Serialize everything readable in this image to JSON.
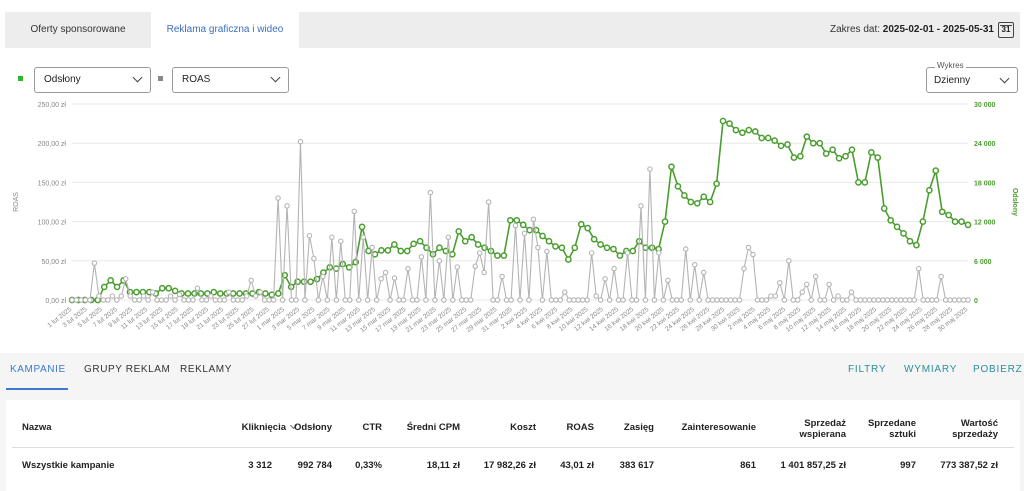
{
  "tabs": [
    {
      "label": "Oferty sponsorowane",
      "active": false
    },
    {
      "label": "Reklama graficzna i wideo",
      "active": true
    }
  ],
  "date_range": {
    "label": "Zakres dat:",
    "value": "2025-02-01 - 2025-05-31",
    "calendar_day": "31"
  },
  "metric_selectors": {
    "left": {
      "value": "Odsłony",
      "color": "#2db82d"
    },
    "right": {
      "value": "ROAS",
      "color": "#888888"
    }
  },
  "chart_type_select": {
    "legend": "Wykres",
    "value": "Dzienny"
  },
  "colors": {
    "green": "#4a9e2f",
    "gray": "#b4b4b4",
    "accent_blue": "#3b7ad0",
    "action_teal": "#2a8f9a"
  },
  "chart_data": {
    "type": "line",
    "left_axis": {
      "label": "ROAS",
      "ticks": [
        "0,00 zł",
        "50,00 zł",
        "100,00 zł",
        "150,00 zł",
        "200,00 zł",
        "250,00 zł"
      ],
      "min": 0,
      "max": 250
    },
    "right_axis": {
      "label": "Odsłony",
      "ticks": [
        "0",
        "6 000",
        "12 000",
        "18 000",
        "24 000",
        "30 000"
      ],
      "min": 0,
      "max": 30000
    },
    "x_tick_labels": [
      "1 lut 2025",
      "3 lut 2025",
      "5 lut 2025",
      "7 lut 2025",
      "9 lut 2025",
      "11 lut 2025",
      "13 lut 2025",
      "15 lut 2025",
      "17 lut 2025",
      "19 lut 2025",
      "21 lut 2025",
      "23 lut 2025",
      "25 lut 2025",
      "27 lut 2025",
      "1 mar 2025",
      "3 mar 2025",
      "5 mar 2025",
      "7 mar 2025",
      "9 mar 2025",
      "11 mar 2025",
      "13 mar 2025",
      "15 mar 2025",
      "17 mar 2025",
      "19 mar 2025",
      "21 mar 2025",
      "23 mar 2025",
      "25 mar 2025",
      "27 mar 2025",
      "29 mar 2025",
      "31 mar 2025",
      "2 kwi 2025",
      "4 kwi 2025",
      "6 kwi 2025",
      "8 kwi 2025",
      "10 kwi 2025",
      "12 kwi 2025",
      "14 kwi 2025",
      "16 kwi 2025",
      "18 kwi 2025",
      "20 kwi 2025",
      "22 kwi 2025",
      "24 kwi 2025",
      "26 kwi 2025",
      "28 kwi 2025",
      "30 kwi 2025",
      "2 maj 2025",
      "4 maj 2025",
      "6 maj 2025",
      "8 maj 2025",
      "10 maj 2025",
      "12 maj 2025",
      "14 maj 2025",
      "16 maj 2025",
      "18 maj 2025",
      "20 maj 2025",
      "22 maj 2025",
      "24 maj 2025",
      "26 maj 2025",
      "28 maj 2025",
      "30 maj 2025"
    ],
    "series": [
      {
        "name": "Odsłony",
        "axis": "right",
        "color": "#4a9e2f",
        "values": [
          0,
          0,
          0,
          0,
          0,
          2000,
          3000,
          2000,
          3000,
          1200,
          1200,
          1200,
          1200,
          1000,
          1800,
          1800,
          1400,
          1000,
          1000,
          1000,
          1000,
          1000,
          1200,
          1000,
          1000,
          1000,
          1000,
          1000,
          1000,
          1200,
          1000,
          800,
          1000,
          3800,
          2000,
          2800,
          2800,
          2800,
          3200,
          4200,
          5000,
          4800,
          5500,
          5000,
          5800,
          11200,
          7500,
          7000,
          7600,
          7600,
          8500,
          7500,
          7500,
          8600,
          9000,
          8000,
          7000,
          8000,
          7500,
          7000,
          10500,
          9000,
          9600,
          8500,
          8000,
          7500,
          6800,
          6800,
          12200,
          12200,
          11500,
          10700,
          10700,
          9800,
          9000,
          8200,
          8000,
          6200,
          8000,
          11600,
          11000,
          9300,
          8500,
          8000,
          7800,
          6800,
          7500,
          7500,
          9000,
          8000,
          8000,
          7800,
          12000,
          20400,
          17400,
          16000,
          15000,
          14800,
          15800,
          15000,
          17800,
          27400,
          27000,
          26000,
          25600,
          26000,
          25800,
          24800,
          24800,
          24400,
          23600,
          23800,
          21800,
          22000,
          25000,
          24000,
          24000,
          22400,
          23000,
          21700,
          22000,
          23000,
          18000,
          18000,
          22600,
          21800,
          14000,
          12200,
          11200,
          10200,
          9000,
          8400,
          12000,
          16800,
          19800,
          13500,
          13000,
          12000,
          12000,
          11500
        ]
      },
      {
        "name": "ROAS",
        "axis": "left",
        "color": "#b4b4b4",
        "values": [
          0,
          0,
          0,
          0,
          0,
          47,
          5,
          0,
          0,
          5,
          0,
          5,
          27,
          5,
          0,
          0,
          5,
          0,
          10,
          0,
          0,
          0,
          5,
          0,
          7,
          0,
          0,
          0,
          15,
          0,
          0,
          5,
          0,
          0,
          0,
          10,
          0,
          0,
          0,
          5,
          25,
          5,
          10,
          0,
          0,
          0,
          130,
          0,
          120,
          0,
          0,
          202,
          0,
          82,
          53,
          0,
          30,
          0,
          80,
          0,
          75,
          0,
          0,
          113,
          0,
          80,
          0,
          67,
          0,
          27,
          35,
          0,
          28,
          0,
          0,
          40,
          0,
          0,
          55,
          0,
          137,
          0,
          50,
          0,
          80,
          0,
          42,
          0,
          0,
          0,
          43,
          60,
          35,
          125,
          0,
          0,
          30,
          0,
          0,
          95,
          0,
          85,
          0,
          103,
          67,
          0,
          62,
          0,
          0,
          0,
          10,
          0,
          0,
          0,
          0,
          0,
          60,
          5,
          0,
          27,
          0,
          40,
          0,
          0,
          60,
          0,
          0,
          120,
          0,
          167,
          0,
          60,
          0,
          25,
          0,
          0,
          0,
          65,
          0,
          45,
          0,
          35,
          0,
          0,
          0,
          0,
          0,
          0,
          0,
          0,
          40,
          67,
          58,
          0,
          0,
          0,
          5,
          5,
          22,
          0,
          50,
          0,
          0,
          10,
          20,
          0,
          30,
          0,
          0,
          20,
          0,
          5,
          0,
          0,
          10,
          0,
          0,
          0,
          0,
          0,
          0,
          0,
          0,
          0,
          0,
          0,
          0,
          0,
          0,
          40,
          0,
          0,
          0,
          0,
          30,
          0,
          0,
          0,
          0,
          0,
          0
        ]
      }
    ]
  },
  "subtabs": [
    {
      "label": "KAMPANIE",
      "active": true
    },
    {
      "label": "GRUPY REKLAM",
      "active": false
    },
    {
      "label": "REKLAMY",
      "active": false
    }
  ],
  "actions": {
    "filters": "FILTRY",
    "dimensions": "WYMIARY",
    "download": "POBIERZ"
  },
  "table": {
    "headers": {
      "name": "Nazwa",
      "clicks": "Kliknięcia",
      "views": "Odsłony",
      "ctr": "CTR",
      "cpm": "Średni CPM",
      "cost": "Koszt",
      "roas": "ROAS",
      "reach": "Zasięg",
      "engagement": "Zainteresowanie",
      "sales_supported_1": "Sprzedaż",
      "sales_supported_2": "wspierana",
      "units_sold_1": "Sprzedane",
      "units_sold_2": "sztuki",
      "sales_value_1": "Wartość",
      "sales_value_2": "sprzedaży"
    },
    "row": {
      "name": "Wszystkie kampanie",
      "clicks": "3 312",
      "views": "992 784",
      "ctr": "0,33%",
      "cpm": "18,11 zł",
      "cost": "17 982,26 zł",
      "roas": "43,01 zł",
      "reach": "383 617",
      "engagement": "861",
      "sales_supported": "1 401 857,25 zł",
      "units_sold": "997",
      "sales_value": "773 387,52 zł"
    }
  }
}
